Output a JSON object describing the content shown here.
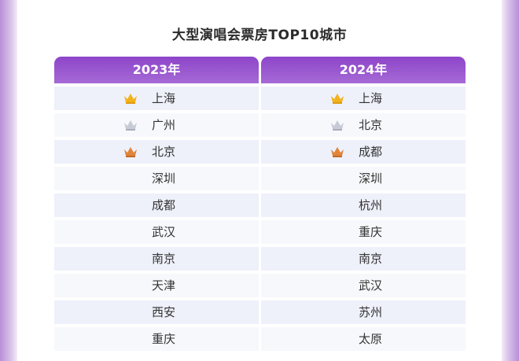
{
  "title": "大型演唱会票房TOP10城市",
  "columns": [
    {
      "year": "2023年",
      "cities": [
        "上海",
        "广州",
        "北京",
        "深圳",
        "成都",
        "武汉",
        "南京",
        "天津",
        "西安",
        "重庆"
      ],
      "crowns": [
        "gold-crown-icon",
        "silver-crown-icon",
        "bronze-crown-icon"
      ]
    },
    {
      "year": "2024年",
      "cities": [
        "上海",
        "北京",
        "成都",
        "深圳",
        "杭州",
        "重庆",
        "南京",
        "武汉",
        "苏州",
        "太原"
      ],
      "crowns": [
        "gold-crown-icon",
        "silver-crown-icon",
        "bronze-crown-icon"
      ]
    }
  ],
  "colors": {
    "header": "#9a55d0",
    "gold": "#f2b21c",
    "silver": "#c7cbd6",
    "bronze": "#e0843a"
  }
}
